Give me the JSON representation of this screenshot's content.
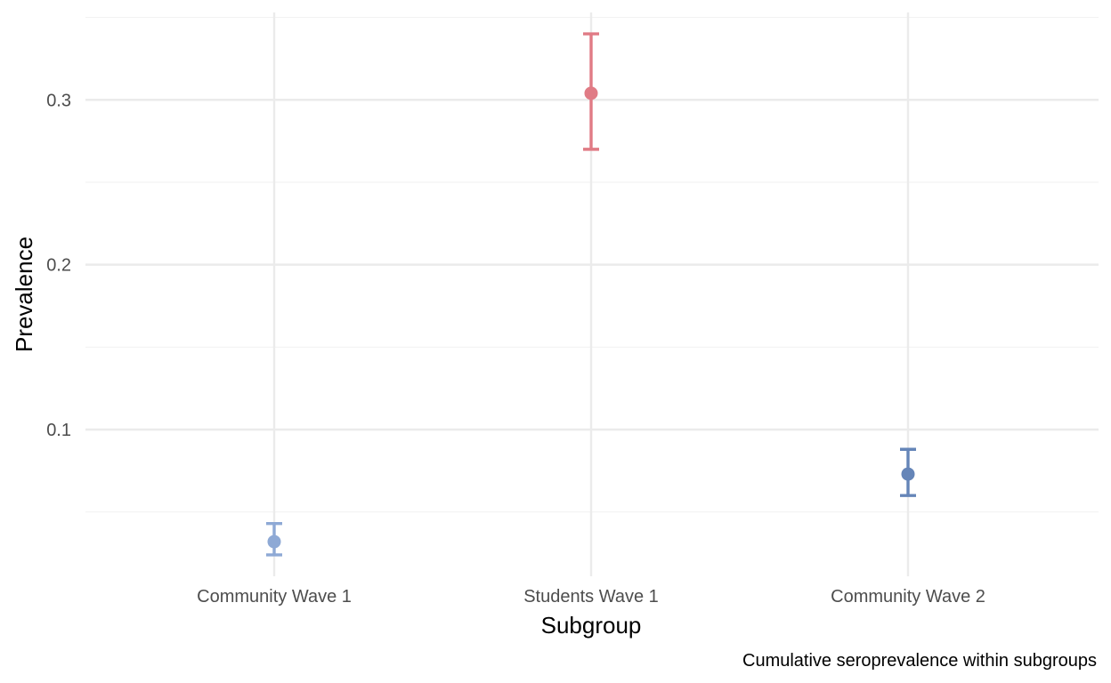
{
  "chart_data": {
    "type": "scatter",
    "subtype": "point-with-errorbars",
    "categories": [
      "Community Wave 1",
      "Students Wave 1",
      "Community Wave 2"
    ],
    "points": [
      {
        "category": "Community Wave 1",
        "value": 0.032,
        "lower": 0.024,
        "upper": 0.043,
        "color": "#8ea9d5"
      },
      {
        "category": "Students Wave 1",
        "value": 0.304,
        "lower": 0.27,
        "upper": 0.34,
        "color": "#e07b85"
      },
      {
        "category": "Community Wave 2",
        "value": 0.073,
        "lower": 0.06,
        "upper": 0.088,
        "color": "#6585b8"
      }
    ],
    "title": "",
    "xlabel": "Subgroup",
    "ylabel": "Prevalence",
    "caption": "Cumulative seroprevalence within subgroups",
    "ylim": [
      0.011,
      0.353
    ],
    "yticks": [
      0.1,
      0.2,
      0.3
    ],
    "ytick_labels": [
      "0.1",
      "0.2",
      "0.3"
    ],
    "yminor": [
      0.05,
      0.15,
      0.25,
      0.35
    ],
    "grid": true,
    "legend": "none",
    "colors": {
      "grid_major": "#ebebeb",
      "grid_minor": "#f2f2f2",
      "tick_text": "#4d4d4d"
    }
  }
}
